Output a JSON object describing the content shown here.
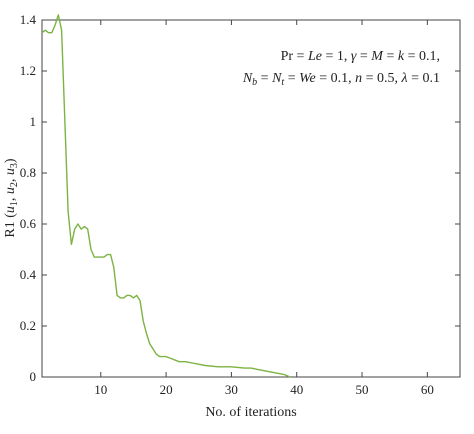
{
  "chart_data": {
    "type": "line",
    "title": "",
    "xlabel": "No. of iterations",
    "ylabel": "R1 (u1, u2, u3)",
    "xlim": [
      1,
      65
    ],
    "ylim": [
      0,
      1.4
    ],
    "xticks": [
      10,
      20,
      30,
      40,
      50,
      60
    ],
    "yticks": [
      0,
      0.2,
      0.4,
      0.6,
      0.8,
      1,
      1.2,
      1.4
    ],
    "xtick_labels": [
      "10",
      "20",
      "30",
      "40",
      "50",
      "60"
    ],
    "ytick_labels": [
      "0",
      "0.2",
      "0.4",
      "0.6",
      "0.8",
      "1",
      "1.2",
      "1.4"
    ],
    "grid": false,
    "annotations": [
      "Pr = Le = 1, γ = M = k = 0.1,",
      "Nb = Nt = We = 0.1, n = 0.5, λ = 0.1"
    ],
    "series": [
      {
        "color": "#7cb342",
        "x": [
          1.0,
          1.5,
          2.0,
          2.5,
          3.0,
          3.5,
          4.0,
          5.0,
          5.5,
          6.0,
          6.5,
          7.0,
          7.5,
          8.0,
          8.5,
          9.0,
          9.5,
          10.0,
          10.5,
          11.0,
          11.5,
          12.0,
          12.5,
          13.0,
          13.5,
          14.0,
          14.5,
          15.0,
          15.5,
          16.0,
          16.5,
          17.0,
          17.5,
          18.0,
          18.5,
          19.0,
          19.5,
          20.0,
          21.0,
          22.0,
          23.0,
          24.0,
          26.0,
          28.0,
          30.0,
          32.0,
          33.0,
          34.0,
          36.0,
          38.0,
          39.0
        ],
        "y": [
          1.35,
          1.36,
          1.35,
          1.35,
          1.38,
          1.42,
          1.36,
          0.65,
          0.52,
          0.58,
          0.6,
          0.58,
          0.59,
          0.58,
          0.5,
          0.47,
          0.47,
          0.47,
          0.47,
          0.48,
          0.48,
          0.43,
          0.32,
          0.31,
          0.31,
          0.32,
          0.32,
          0.31,
          0.32,
          0.3,
          0.22,
          0.17,
          0.13,
          0.11,
          0.09,
          0.08,
          0.08,
          0.08,
          0.07,
          0.06,
          0.06,
          0.055,
          0.045,
          0.04,
          0.04,
          0.035,
          0.035,
          0.03,
          0.02,
          0.01,
          0.0
        ]
      }
    ]
  }
}
